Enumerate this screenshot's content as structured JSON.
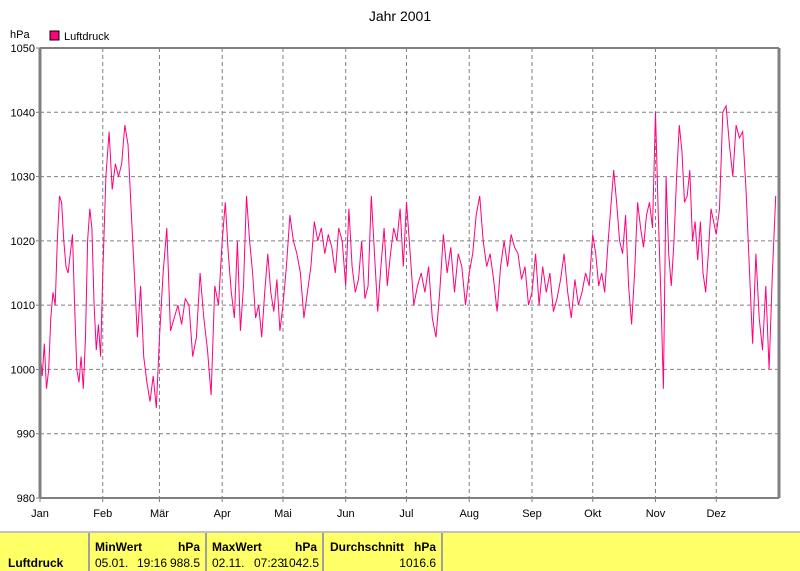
{
  "chart_data": {
    "type": "line",
    "title": "Jahr 2001",
    "ylabel": "hPa",
    "xlabel": "",
    "ylim": [
      980,
      1050
    ],
    "yticks": [
      "980",
      "990",
      "1000",
      "1010",
      "1020",
      "1030",
      "1040",
      "1050"
    ],
    "grid": true,
    "legend": {
      "placement": "top-left",
      "entries": [
        "Luftdruck"
      ]
    },
    "series": [
      {
        "name": "Luftdruck",
        "color": "#ff007f",
        "months": [
          {
            "label": "Jan",
            "values": [
              1003,
              999,
              1004,
              997,
              1000,
              1008,
              1012,
              1010,
              1020,
              1027,
              1026,
              1020,
              1016,
              1015,
              1018,
              1021,
              1010,
              1000,
              998,
              1002,
              997,
              1005,
              1020,
              1025,
              1022,
              1010,
              1003,
              1007,
              1002
            ]
          },
          {
            "label": "Feb",
            "values": [
              1015,
              1030,
              1037,
              1028,
              1032,
              1030,
              1032,
              1038,
              1035,
              1025,
              1015,
              1005,
              1013,
              1002,
              998,
              995,
              999,
              994
            ]
          },
          {
            "label": "Mär",
            "values": [
              1005,
              1015,
              1022,
              1006,
              1008,
              1010,
              1007,
              1011,
              1010,
              1002,
              1005,
              1015,
              1008,
              1003,
              996,
              1013,
              1010
            ]
          },
          {
            "label": "Apr",
            "values": [
              1020,
              1026,
              1018,
              1012,
              1008,
              1020,
              1006,
              1013,
              1027,
              1020,
              1015,
              1008,
              1010,
              1005,
              1012,
              1018,
              1012,
              1009,
              1014,
              1006
            ]
          },
          {
            "label": "Mai",
            "values": [
              1010,
              1016,
              1024,
              1020,
              1018,
              1015,
              1008,
              1012,
              1016,
              1023,
              1020,
              1022,
              1018,
              1021,
              1019,
              1015,
              1022,
              1020
            ]
          },
          {
            "label": "Jun",
            "values": [
              1013,
              1025,
              1016,
              1012,
              1014,
              1020,
              1011,
              1013,
              1027,
              1018,
              1009,
              1016,
              1022,
              1013,
              1018,
              1022,
              1020,
              1025,
              1016
            ]
          },
          {
            "label": "Jul",
            "values": [
              1026,
              1018,
              1010,
              1013,
              1015,
              1012,
              1016,
              1008,
              1005,
              1012,
              1021,
              1015,
              1019,
              1012,
              1018,
              1016,
              1010
            ]
          },
          {
            "label": "Aug",
            "values": [
              1015,
              1018,
              1024,
              1027,
              1020,
              1016,
              1018,
              1014,
              1009,
              1016,
              1020,
              1016,
              1021,
              1019,
              1018,
              1014,
              1016,
              1010
            ]
          },
          {
            "label": "Sep",
            "values": [
              1012,
              1018,
              1010,
              1016,
              1012,
              1015,
              1009,
              1011,
              1014,
              1018,
              1012,
              1008,
              1014,
              1010,
              1012,
              1015,
              1013
            ]
          },
          {
            "label": "Okt",
            "values": [
              1021,
              1018,
              1013,
              1015,
              1012,
              1019,
              1025,
              1031,
              1026,
              1020,
              1018,
              1024,
              1013,
              1007,
              1015,
              1026,
              1022,
              1019,
              1024,
              1026,
              1022
            ]
          },
          {
            "label": "Nov",
            "values": [
              1040,
              1025,
              1012,
              997,
              1030,
              1018,
              1013,
              1020,
              1030,
              1038,
              1034,
              1026,
              1027,
              1031,
              1020,
              1023,
              1017,
              1023,
              1015,
              1012,
              1018,
              1025,
              1023
            ]
          },
          {
            "label": "Dez",
            "values": [
              1021,
              1025,
              1040,
              1041,
              1035,
              1030,
              1038,
              1036,
              1037,
              1028,
              1016,
              1004,
              1018,
              1008,
              1003,
              1013,
              1000,
              1015,
              1027
            ]
          }
        ]
      }
    ]
  },
  "summary": {
    "series_label": "Luftdruck",
    "min": {
      "header": "MinWert",
      "unit": "hPa",
      "date": "05.01.",
      "time": "19:16",
      "value": "988.5"
    },
    "max": {
      "header": "MaxWert",
      "unit": "hPa",
      "date": "02.11.",
      "time": "07:23",
      "value": "1042.5"
    },
    "avg": {
      "header": "Durchschnitt",
      "unit": "hPa",
      "value": "1016.6"
    }
  }
}
